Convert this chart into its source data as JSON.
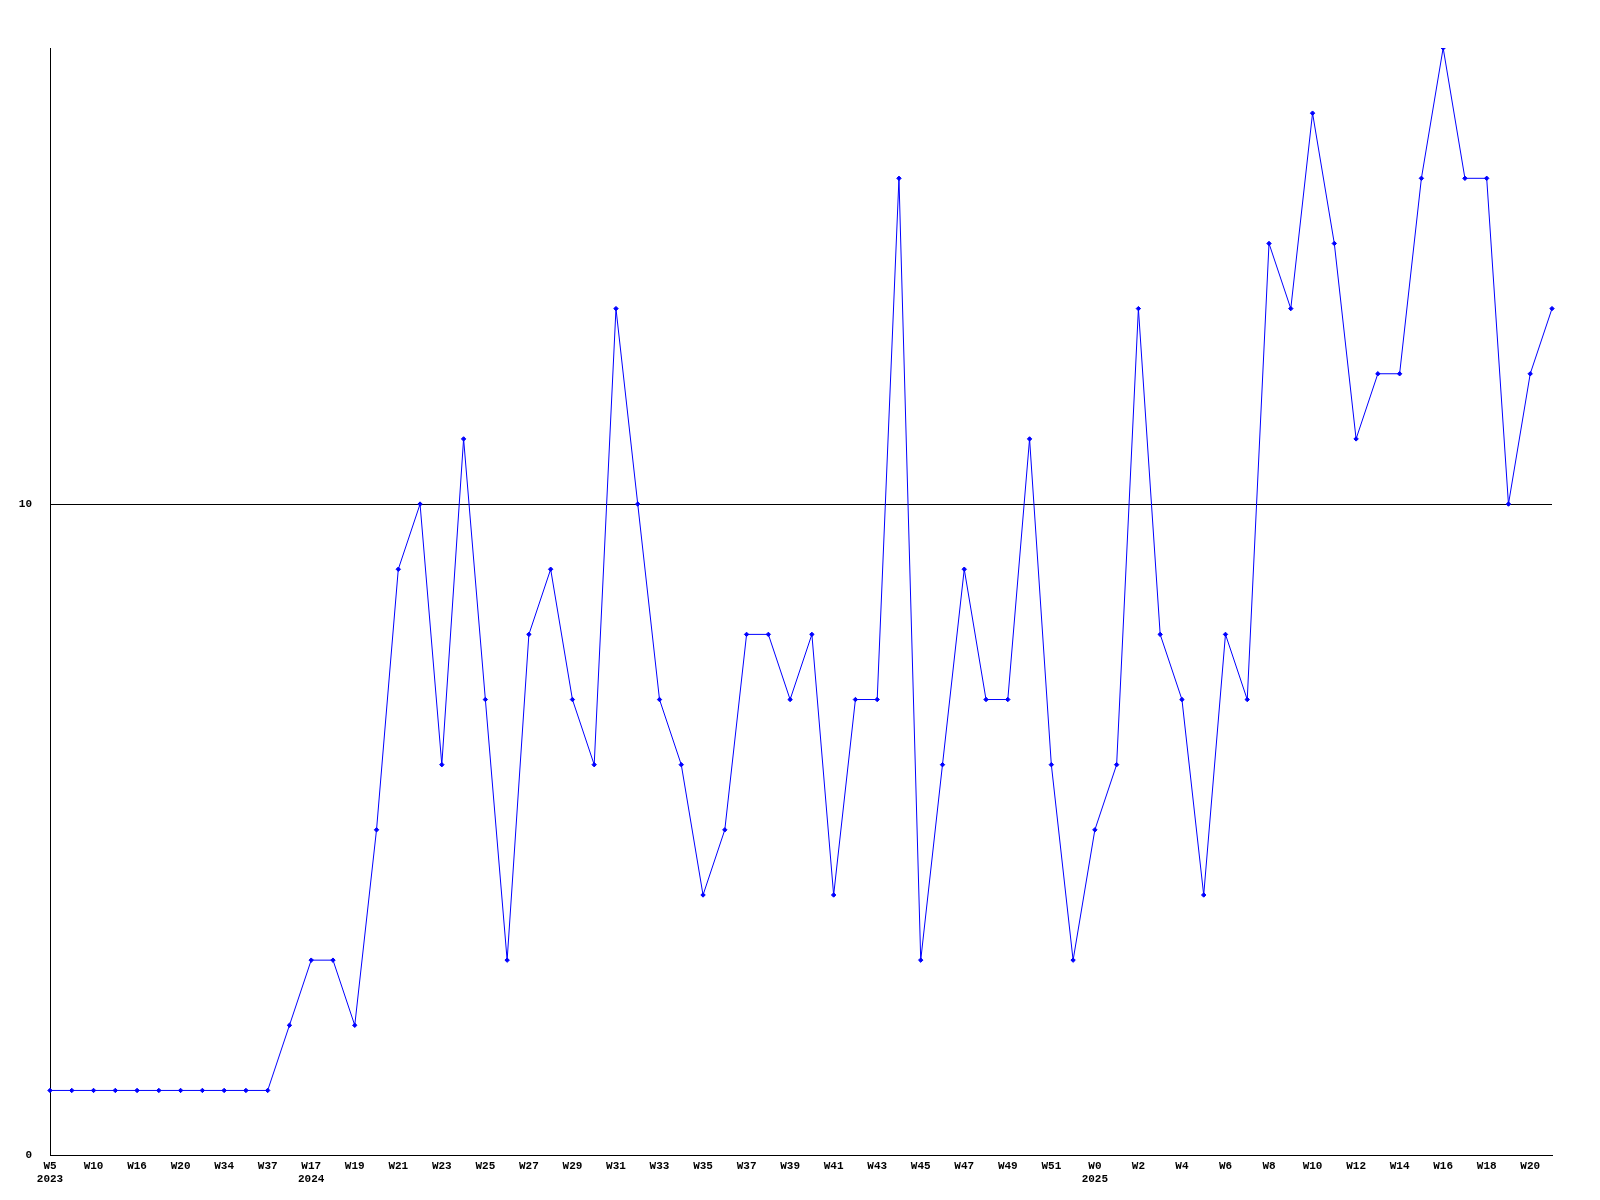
{
  "chart_data": {
    "type": "line",
    "categories": [
      "W5\n2023",
      null,
      "W10",
      null,
      "W16",
      null,
      "W20",
      null,
      "W34",
      null,
      "W37",
      null,
      "W17\n2024",
      null,
      "W19",
      null,
      "W21",
      null,
      "W23",
      null,
      "W25",
      null,
      "W27",
      null,
      "W29",
      null,
      "W31",
      null,
      "W33",
      null,
      "W35",
      null,
      "W37",
      null,
      "W39",
      null,
      "W41",
      null,
      "W43",
      null,
      "W45",
      null,
      "W47",
      null,
      "W49",
      null,
      "W51",
      null,
      "W0\n2025",
      null,
      "W2",
      null,
      "W4",
      null,
      "W6",
      null,
      "W8",
      null,
      "W10",
      null,
      "W12",
      null,
      "W14",
      null,
      "W16",
      null,
      "W18",
      null,
      "W20",
      null
    ],
    "series": [
      {
        "color": "#0000ff",
        "values": [
          1,
          1,
          1,
          1,
          1,
          1,
          1,
          1,
          1,
          1,
          1,
          2,
          3,
          3,
          2,
          5,
          9,
          10,
          6,
          11,
          7,
          3,
          8,
          9,
          7,
          6,
          13,
          10,
          7,
          6,
          4,
          5,
          8,
          8,
          7,
          8,
          4,
          7,
          7,
          15,
          3,
          6,
          9,
          7,
          7,
          11,
          6,
          3,
          5,
          6,
          13,
          8,
          7,
          4,
          8,
          7,
          14,
          13,
          16,
          14,
          11,
          12,
          12,
          15,
          17,
          15,
          15,
          10,
          12,
          13
        ]
      }
    ],
    "ylim": [
      0,
      17
    ],
    "yticks": [
      0,
      10
    ],
    "grid": "y",
    "marker": "diamond",
    "line_style": "solid",
    "legend": false
  }
}
